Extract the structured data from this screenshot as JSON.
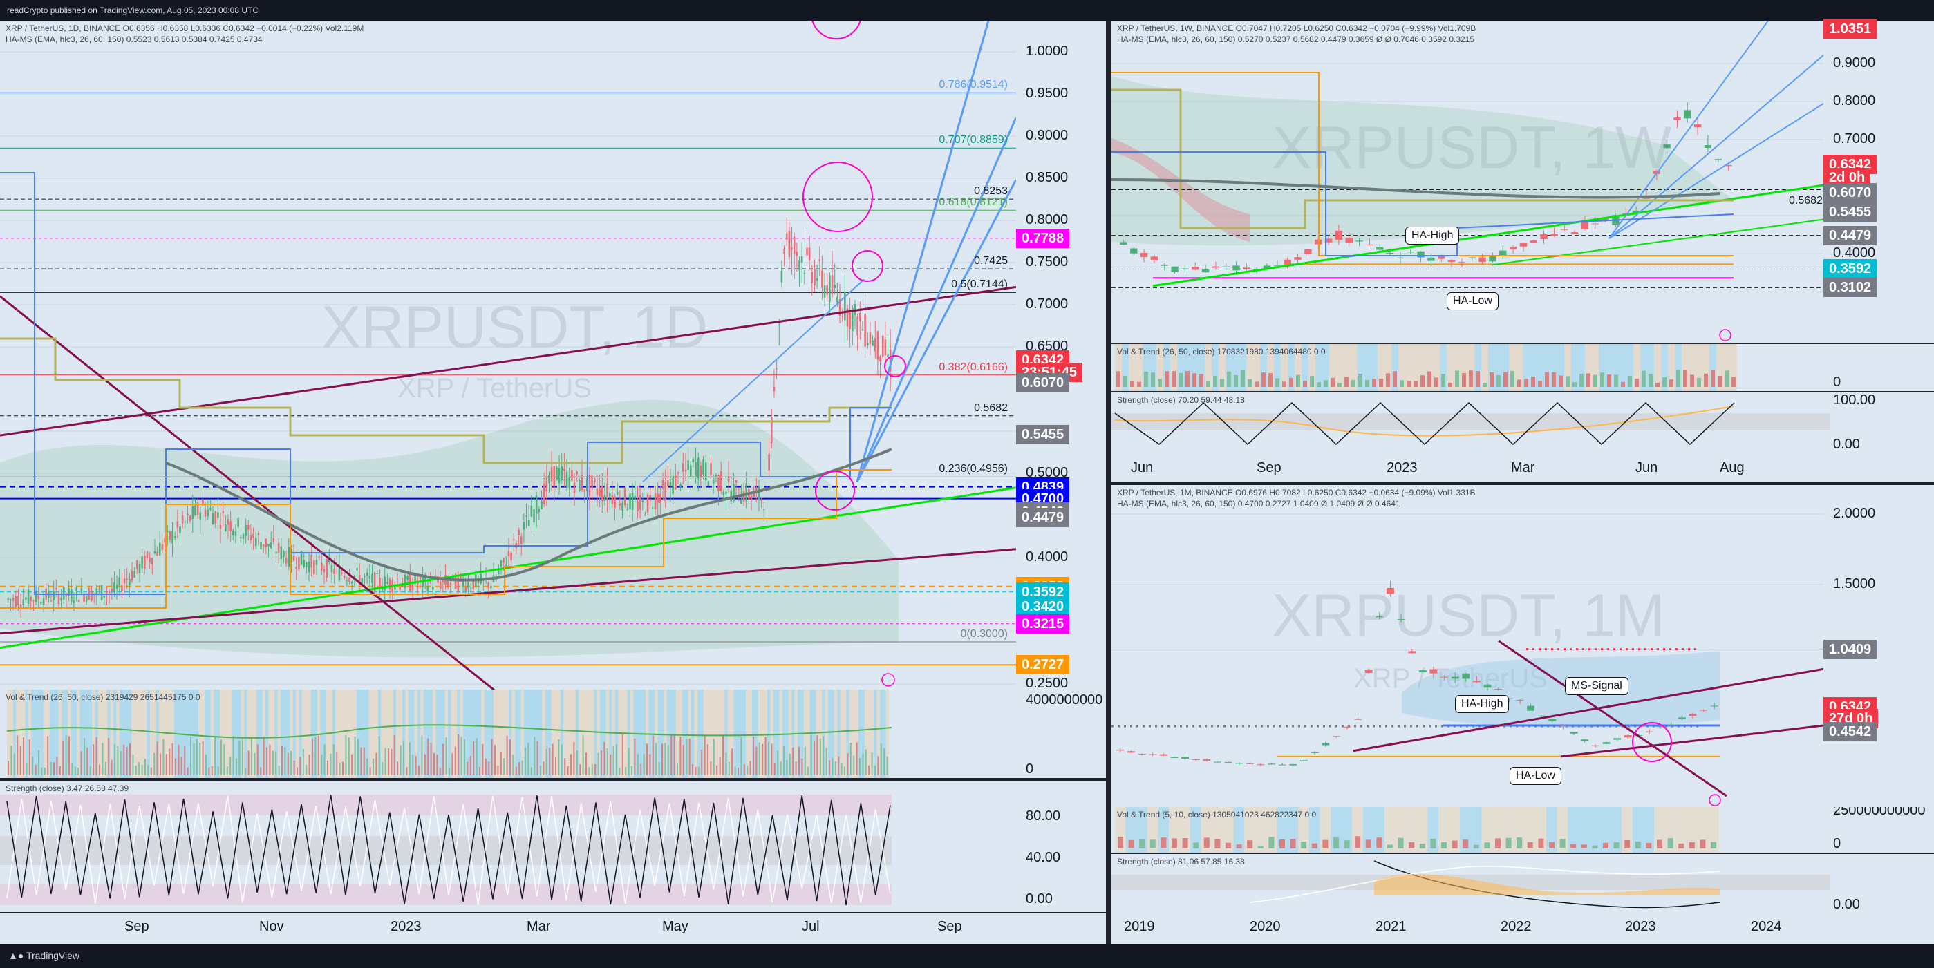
{
  "publisher": "readCrypto published on TradingView.com, Aug 05, 2023 00:08 UTC",
  "footer_brand": "TradingView",
  "colors": {
    "pane_bg": "#dde8f3",
    "red_badge": "#f23645",
    "blue_badge": "#0000ff",
    "magenta_badge": "#ff00ff",
    "orange_badge": "#ff9800",
    "teal_badge": "#00bcd4",
    "gray_badge": "#787b86",
    "green_line": "#00e600",
    "maroon_line": "#880e4f",
    "fib_blue": "#5b9cf6"
  },
  "daily": {
    "header_line1": "XRP / TetherUS, 1D, BINANCE O0.6356 H0.6358 L0.6336 C0.6342 −0.0014 (−0.22%) Vol2.119M",
    "header_line2": "HA-MS (EMA, hlc3, 26, 60, 150)  0.5523  0.5613  0.5384  0.7425  0.4734",
    "watermark": "XRPUSDT, 1D",
    "watermark_sub": "XRP / TetherUS",
    "price_ticks": [
      "1.0000",
      "0.9500",
      "0.9000",
      "0.8500",
      "0.8000",
      "0.7500",
      "0.7000",
      "0.6500",
      "0.5500",
      "0.5000",
      "0.4000",
      "0.2500"
    ],
    "badges": [
      {
        "text": "0.7788",
        "color": "#ff00ff",
        "price": 0.7788
      },
      {
        "text": "0.6342",
        "color": "#f23645",
        "price": 0.6342
      },
      {
        "text": "23:51:45",
        "color": "#f23645",
        "price": 0.62
      },
      {
        "text": "0.6070",
        "color": "#787b86",
        "price": 0.607
      },
      {
        "text": "0.5455",
        "color": "#787b86",
        "price": 0.5455
      },
      {
        "text": "0.4839",
        "color": "#0000ff",
        "price": 0.4839
      },
      {
        "text": "0.4700",
        "color": "#0000ff",
        "price": 0.47
      },
      {
        "text": "0.4542",
        "color": "#787b86",
        "price": 0.4542
      },
      {
        "text": "0.4479",
        "color": "#787b86",
        "price": 0.4479
      },
      {
        "text": "0.3659",
        "color": "#ff9800",
        "price": 0.3659
      },
      {
        "text": "0.3592",
        "color": "#00bcd4",
        "price": 0.3592
      },
      {
        "text": "0.3420",
        "color": "#00bcd4",
        "price": 0.342
      },
      {
        "text": "0.3215",
        "color": "#ff00ff",
        "price": 0.3215
      },
      {
        "text": "0.2727",
        "color": "#ff9800",
        "price": 0.2727
      }
    ],
    "fib_levels": [
      {
        "label": "0.786(0.9514)",
        "price": 0.9514,
        "color": "#5b9cf6"
      },
      {
        "label": "0.707(0.8859)",
        "price": 0.8859,
        "color": "#089981"
      },
      {
        "label": "0.8253",
        "price": 0.8253,
        "color": "#131722"
      },
      {
        "label": "0.618(0.8121)",
        "price": 0.8121,
        "color": "#4caf50"
      },
      {
        "label": "0.7425",
        "price": 0.7425,
        "color": "#131722"
      },
      {
        "label": "0.5(0.7144)",
        "price": 0.7144,
        "color": "#131722"
      },
      {
        "label": "0.382(0.6166)",
        "price": 0.6166,
        "color": "#f23645"
      },
      {
        "label": "0.5682",
        "price": 0.5682,
        "color": "#131722"
      },
      {
        "label": "0.236(0.4956)",
        "price": 0.4956,
        "color": "#131722"
      },
      {
        "label": "0(0.3000)",
        "price": 0.3,
        "color": "#787b86"
      }
    ],
    "time_labels": [
      "Sep",
      "Nov",
      "2023",
      "Mar",
      "May",
      "Jul",
      "Sep"
    ],
    "vol_header": "Vol & Trend (26, 50, close)  2319429  2651445175  0  0",
    "vol_ticks": [
      "4000000000",
      "0"
    ],
    "str_header": "Strength (close)  3.47  26.58  47.39",
    "str_ticks": [
      "80.00",
      "40.00",
      "0.00"
    ]
  },
  "weekly": {
    "header_line1": "XRP / TetherUS, 1W, BINANCE O0.7047 H0.7205 L0.6250 C0.6342 −0.0704 (−9.99%) Vol1.709B",
    "header_line2": "HA-MS (EMA, hlc3, 26, 60, 150)  0.5270  0.5237  0.5682  0.4479  0.3659  Ø  Ø  0.7046  0.3592  0.3215",
    "watermark": "XRPUSDT, 1W",
    "price_ticks": [
      "0.9000",
      "0.8000",
      "0.7000",
      "0.5000",
      "0.4000"
    ],
    "badges": [
      {
        "text": "1.0351",
        "color": "#f23645",
        "price": 1.0351
      },
      {
        "text": "0.6342",
        "color": "#f23645",
        "price": 0.6342
      },
      {
        "text": "2d 0h",
        "color": "#f23645",
        "price": 0.6
      },
      {
        "text": "0.6070",
        "color": "#787b86",
        "price": 0.56
      },
      {
        "text": "0.5455",
        "color": "#787b86",
        "price": 0.51
      },
      {
        "text": "0.4479",
        "color": "#787b86",
        "price": 0.4479
      },
      {
        "text": "0.3592",
        "color": "#00bcd4",
        "price": 0.3592
      },
      {
        "text": "0.3102",
        "color": "#787b86",
        "price": 0.3102
      }
    ],
    "level_label": "0.5682",
    "callouts": [
      "HA-High",
      "HA-Low"
    ],
    "time_labels": [
      "Jun",
      "Sep",
      "2023",
      "Mar",
      "Jun",
      "Aug"
    ],
    "vol_header": "Vol & Trend (26, 50, close)  1708321980  1394064480  0  0",
    "vol_ticks": [
      "0"
    ],
    "str_header": "Strength (close)  70.20  59.44  48.18",
    "str_ticks": [
      "100.00",
      "0.00"
    ]
  },
  "monthly": {
    "header_line1": "XRP / TetherUS, 1M, BINANCE O0.6976 H0.7082 L0.6250 C0.6342 −0.0634 (−9.09%) Vol1.331B",
    "header_line2": "HA-MS (EMA, hlc3, 26, 60, 150)  0.4700  0.2727  1.0409  Ø  1.0409  Ø  Ø  0.4641",
    "watermark": "XRPUSDT, 1M",
    "watermark_sub": "XRP / TetherUS",
    "price_ticks": [
      "2.0000",
      "1.5000"
    ],
    "badges": [
      {
        "text": "1.0409",
        "color": "#787b86",
        "price": 1.0409
      },
      {
        "text": "0.6342",
        "color": "#f23645",
        "price": 0.6342
      },
      {
        "text": "27d 0h",
        "color": "#f23645",
        "price": 0.55
      },
      {
        "text": "0.4542",
        "color": "#787b86",
        "price": 0.4542
      }
    ],
    "callouts": [
      "HA-High",
      "MS-Signal",
      "HA-Low"
    ],
    "time_labels": [
      "2019",
      "2020",
      "2021",
      "2022",
      "2023",
      "2024"
    ],
    "vol_header": "Vol & Trend (5, 10, close)  1305041023  462822347  0  0",
    "vol_ticks": [
      "250000000000",
      "0"
    ],
    "str_header": "Strength (close)  81.06  57.85  16.38",
    "str_ticks": [
      "0.00"
    ]
  },
  "chart_data": [
    {
      "type": "line",
      "title": "XRPUSDT, 1D",
      "x": [
        "Sep",
        "Nov",
        "2023",
        "Mar",
        "May",
        "Jul",
        "Sep"
      ],
      "series": [
        {
          "name": "XRP / TetherUS",
          "values": [
            0.35,
            0.46,
            0.34,
            0.38,
            0.46,
            0.47,
            0.6342
          ]
        }
      ],
      "ylim": [
        0.25,
        1.0
      ],
      "xlabel": "",
      "ylabel": ""
    },
    {
      "type": "line",
      "title": "XRPUSDT, 1W",
      "x": [
        "Jun",
        "Sep",
        "2023",
        "Mar",
        "Jun",
        "Aug"
      ],
      "series": [
        {
          "name": "XRP / TetherUS",
          "values": [
            0.36,
            0.4,
            0.35,
            0.38,
            0.47,
            0.6342
          ]
        }
      ],
      "ylim": [
        0.4,
        0.9
      ],
      "xlabel": "",
      "ylabel": ""
    },
    {
      "type": "line",
      "title": "XRPUSDT, 1M",
      "x": [
        "2019",
        "2020",
        "2021",
        "2022",
        "2023",
        "2024"
      ],
      "series": [
        {
          "name": "XRP / TetherUS",
          "values": [
            0.32,
            0.23,
            0.22,
            0.83,
            0.35,
            0.6342
          ]
        }
      ],
      "ylim": [
        0.0,
        2.0
      ],
      "xlabel": "",
      "ylabel": ""
    }
  ]
}
